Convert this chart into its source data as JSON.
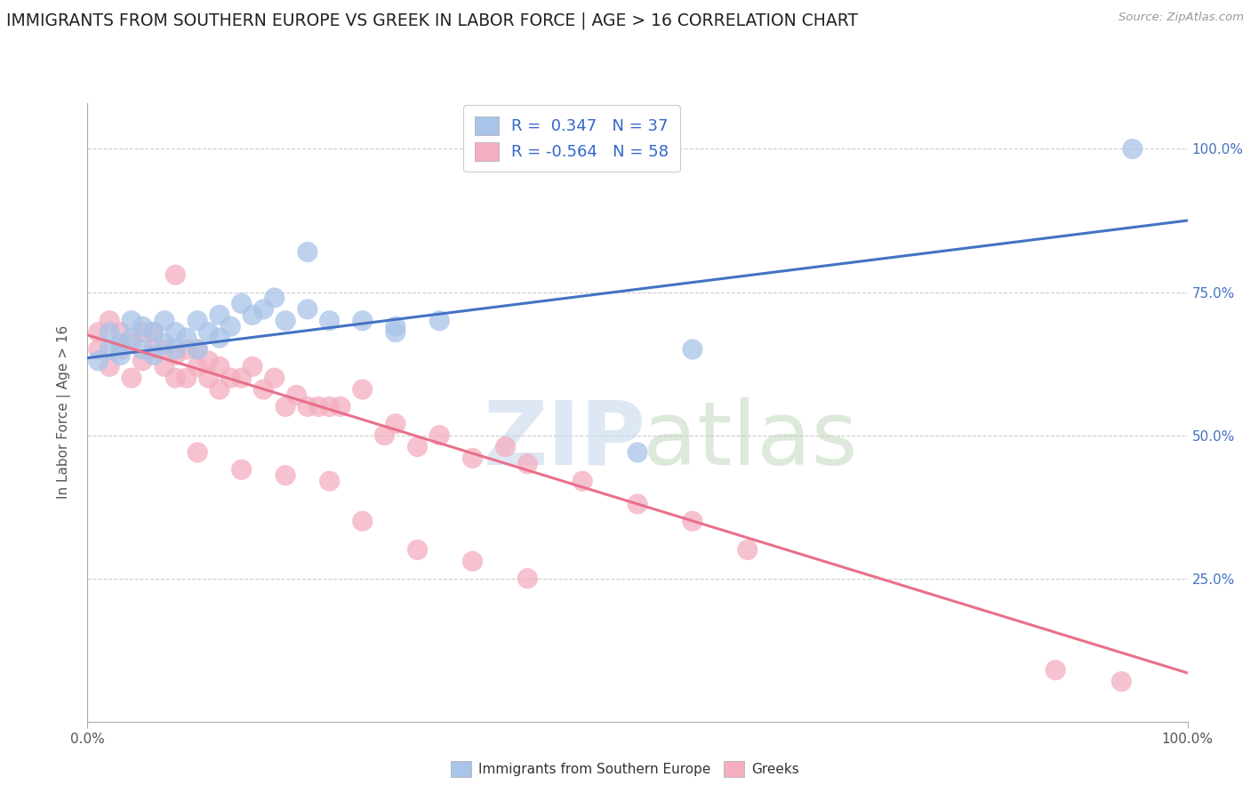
{
  "title": "IMMIGRANTS FROM SOUTHERN EUROPE VS GREEK IN LABOR FORCE | AGE > 16 CORRELATION CHART",
  "source": "Source: ZipAtlas.com",
  "ylabel": "In Labor Force | Age > 16",
  "xlim": [
    0,
    1.0
  ],
  "ylim": [
    0,
    1.08
  ],
  "blue_R": 0.347,
  "blue_N": 37,
  "pink_R": -0.564,
  "pink_N": 58,
  "blue_color": "#a8c4e8",
  "pink_color": "#f4aec0",
  "blue_line_color": "#4472C4",
  "pink_line_color": "#e8708a",
  "blue_scatter_x": [
    0.01,
    0.02,
    0.02,
    0.03,
    0.03,
    0.04,
    0.04,
    0.05,
    0.05,
    0.06,
    0.06,
    0.07,
    0.07,
    0.08,
    0.08,
    0.09,
    0.1,
    0.1,
    0.11,
    0.12,
    0.12,
    0.13,
    0.14,
    0.15,
    0.16,
    0.17,
    0.18,
    0.2,
    0.22,
    0.25,
    0.28,
    0.5,
    0.55,
    0.28,
    0.32,
    0.2,
    0.95
  ],
  "blue_scatter_y": [
    0.63,
    0.65,
    0.68,
    0.64,
    0.66,
    0.67,
    0.7,
    0.65,
    0.69,
    0.64,
    0.68,
    0.66,
    0.7,
    0.65,
    0.68,
    0.67,
    0.65,
    0.7,
    0.68,
    0.67,
    0.71,
    0.69,
    0.73,
    0.71,
    0.72,
    0.74,
    0.7,
    0.72,
    0.7,
    0.7,
    0.68,
    0.47,
    0.65,
    0.69,
    0.7,
    0.82,
    1.0
  ],
  "pink_scatter_x": [
    0.01,
    0.01,
    0.02,
    0.02,
    0.03,
    0.03,
    0.04,
    0.04,
    0.05,
    0.05,
    0.06,
    0.06,
    0.07,
    0.07,
    0.08,
    0.08,
    0.09,
    0.09,
    0.1,
    0.1,
    0.11,
    0.11,
    0.12,
    0.12,
    0.13,
    0.14,
    0.15,
    0.16,
    0.17,
    0.18,
    0.19,
    0.2,
    0.21,
    0.22,
    0.23,
    0.25,
    0.27,
    0.28,
    0.3,
    0.32,
    0.35,
    0.38,
    0.4,
    0.45,
    0.5,
    0.55,
    0.6,
    0.08,
    0.1,
    0.14,
    0.18,
    0.22,
    0.25,
    0.3,
    0.35,
    0.4,
    0.88,
    0.94
  ],
  "pink_scatter_y": [
    0.65,
    0.68,
    0.62,
    0.7,
    0.65,
    0.68,
    0.6,
    0.66,
    0.68,
    0.63,
    0.65,
    0.68,
    0.62,
    0.65,
    0.6,
    0.64,
    0.65,
    0.6,
    0.62,
    0.65,
    0.6,
    0.63,
    0.58,
    0.62,
    0.6,
    0.6,
    0.62,
    0.58,
    0.6,
    0.55,
    0.57,
    0.55,
    0.55,
    0.55,
    0.55,
    0.58,
    0.5,
    0.52,
    0.48,
    0.5,
    0.46,
    0.48,
    0.45,
    0.42,
    0.38,
    0.35,
    0.3,
    0.78,
    0.47,
    0.44,
    0.43,
    0.42,
    0.35,
    0.3,
    0.28,
    0.25,
    0.09,
    0.07
  ],
  "blue_line_x0": 0.0,
  "blue_line_x1": 1.0,
  "blue_line_y0": 0.635,
  "blue_line_y1": 0.875,
  "pink_line_x0": 0.0,
  "pink_line_x1": 1.0,
  "pink_line_y0": 0.675,
  "pink_line_y1": 0.085,
  "grid_color": "#cccccc",
  "background_color": "#ffffff",
  "legend_text_color": "#3366cc",
  "title_fontsize": 13.5,
  "axis_label_fontsize": 11,
  "tick_fontsize": 11,
  "right_tick_color": "#4472C4",
  "bottom_legend_label1": "Immigrants from Southern Europe",
  "bottom_legend_label2": "Greeks"
}
